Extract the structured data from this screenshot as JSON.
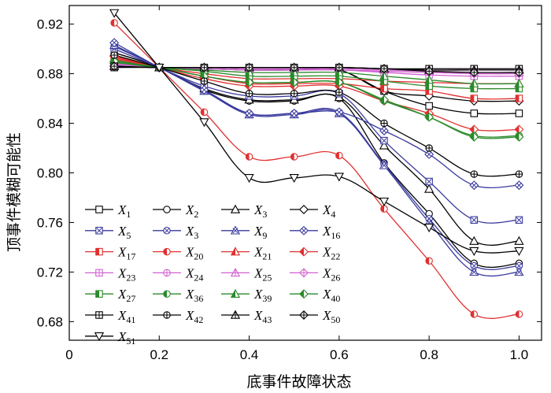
{
  "chart_data": {
    "type": "line",
    "xlabel": "底事件故障状态",
    "ylabel": "顶事件模糊可能性",
    "xlim": [
      0,
      1.05
    ],
    "ylim": [
      0.665,
      0.935
    ],
    "x_ticks": [
      "0",
      "0.2",
      "0.4",
      "0.6",
      "0.8",
      "1.0"
    ],
    "y_ticks": [
      "0.68",
      "0.72",
      "0.76",
      "0.80",
      "0.84",
      "0.88",
      "0.92"
    ],
    "grid": false,
    "legend_position": "bottom-left",
    "x": [
      0.1,
      0.2,
      0.3,
      0.4,
      0.5,
      0.6,
      0.7,
      0.8,
      0.9,
      1.0
    ],
    "series": [
      {
        "name": "X1",
        "label_main": "X",
        "label_sub": "1",
        "color": "#000000",
        "marker": "square",
        "values": [
          0.885,
          0.885,
          0.884,
          0.883,
          0.883,
          0.883,
          0.866,
          0.854,
          0.848,
          0.848
        ]
      },
      {
        "name": "X2",
        "label_main": "X",
        "label_sub": "2",
        "color": "#000000",
        "marker": "circle",
        "values": [
          0.897,
          0.885,
          0.867,
          0.858,
          0.858,
          0.86,
          0.808,
          0.767,
          0.727,
          0.727
        ]
      },
      {
        "name": "X3",
        "label_main": "X",
        "label_sub": "3",
        "color": "#000000",
        "marker": "triangle",
        "values": [
          0.897,
          0.885,
          0.868,
          0.859,
          0.859,
          0.861,
          0.822,
          0.787,
          0.745,
          0.745
        ]
      },
      {
        "name": "X4",
        "label_main": "X",
        "label_sub": "4",
        "color": "#000000",
        "marker": "diamond",
        "values": [
          0.886,
          0.885,
          0.884,
          0.883,
          0.883,
          0.883,
          0.866,
          0.862,
          0.858,
          0.858
        ]
      },
      {
        "name": "X5",
        "label_main": "X",
        "label_sub": "5",
        "color": "#3a3a9e",
        "marker": "square-x",
        "values": [
          0.9,
          0.885,
          0.87,
          0.862,
          0.862,
          0.864,
          0.826,
          0.793,
          0.762,
          0.762
        ]
      },
      {
        "name": "X3",
        "label_main": "X",
        "label_sub": "3",
        "color": "#3a3a9e",
        "marker": "circle-x",
        "values": [
          0.902,
          0.885,
          0.866,
          0.848,
          0.848,
          0.849,
          0.807,
          0.763,
          0.725,
          0.725
        ]
      },
      {
        "name": "X9",
        "label_main": "X",
        "label_sub": "9",
        "color": "#3a3a9e",
        "marker": "triangle-x",
        "values": [
          0.903,
          0.885,
          0.866,
          0.847,
          0.847,
          0.848,
          0.806,
          0.76,
          0.72,
          0.72
        ]
      },
      {
        "name": "X16",
        "label_main": "X",
        "label_sub": "16",
        "color": "#3a3a9e",
        "marker": "diamond-x",
        "values": [
          0.905,
          0.885,
          0.867,
          0.848,
          0.848,
          0.849,
          0.834,
          0.815,
          0.79,
          0.79
        ]
      },
      {
        "name": "X17",
        "label_main": "X",
        "label_sub": "17",
        "color": "#e03030",
        "marker": "square-half",
        "values": [
          0.893,
          0.885,
          0.878,
          0.872,
          0.872,
          0.872,
          0.868,
          0.866,
          0.86,
          0.86
        ]
      },
      {
        "name": "X20",
        "label_main": "X",
        "label_sub": "20",
        "color": "#e03030",
        "marker": "circle-half",
        "values": [
          0.921,
          0.885,
          0.849,
          0.813,
          0.813,
          0.814,
          0.771,
          0.729,
          0.686,
          0.686
        ]
      },
      {
        "name": "X21",
        "label_main": "X",
        "label_sub": "21",
        "color": "#e03030",
        "marker": "triangle-half",
        "values": [
          0.892,
          0.885,
          0.88,
          0.876,
          0.876,
          0.876,
          0.874,
          0.873,
          0.872,
          0.872
        ]
      },
      {
        "name": "X22",
        "label_main": "X",
        "label_sub": "22",
        "color": "#e03030",
        "marker": "diamond-half",
        "values": [
          0.894,
          0.885,
          0.876,
          0.87,
          0.87,
          0.87,
          0.858,
          0.848,
          0.835,
          0.835
        ]
      },
      {
        "name": "X23",
        "label_main": "X",
        "label_sub": "23",
        "color": "#d060d0",
        "marker": "square-plus",
        "values": [
          0.888,
          0.885,
          0.884,
          0.883,
          0.883,
          0.883,
          0.881,
          0.879,
          0.878,
          0.878
        ]
      },
      {
        "name": "X24",
        "label_main": "X",
        "label_sub": "24",
        "color": "#d060d0",
        "marker": "circle-plus",
        "values": [
          0.888,
          0.885,
          0.884,
          0.883,
          0.883,
          0.883,
          0.882,
          0.881,
          0.88,
          0.88
        ]
      },
      {
        "name": "X25",
        "label_main": "X",
        "label_sub": "25",
        "color": "#d060d0",
        "marker": "triangle-plus",
        "values": [
          0.887,
          0.885,
          0.885,
          0.884,
          0.884,
          0.884,
          0.883,
          0.882,
          0.881,
          0.881
        ]
      },
      {
        "name": "X26",
        "label_main": "X",
        "label_sub": "26",
        "color": "#d060d0",
        "marker": "diamond-plus",
        "values": [
          0.887,
          0.885,
          0.885,
          0.885,
          0.885,
          0.885,
          0.884,
          0.883,
          0.883,
          0.883
        ]
      },
      {
        "name": "X27",
        "label_main": "X",
        "label_sub": "27",
        "color": "#2a8a2a",
        "marker": "square-half",
        "values": [
          0.889,
          0.885,
          0.882,
          0.878,
          0.878,
          0.878,
          0.874,
          0.87,
          0.868,
          0.868
        ]
      },
      {
        "name": "X36",
        "label_main": "X",
        "label_sub": "36",
        "color": "#2a8a2a",
        "marker": "circle-half",
        "values": [
          0.89,
          0.885,
          0.878,
          0.873,
          0.873,
          0.873,
          0.858,
          0.845,
          0.83,
          0.83
        ]
      },
      {
        "name": "X39",
        "label_main": "X",
        "label_sub": "39",
        "color": "#2a8a2a",
        "marker": "triangle-half",
        "values": [
          0.891,
          0.885,
          0.883,
          0.881,
          0.881,
          0.881,
          0.878,
          0.875,
          0.872,
          0.872
        ]
      },
      {
        "name": "X40",
        "label_main": "X",
        "label_sub": "40",
        "color": "#2a8a2a",
        "marker": "diamond-half",
        "values": [
          0.89,
          0.885,
          0.878,
          0.873,
          0.873,
          0.873,
          0.859,
          0.845,
          0.829,
          0.829
        ]
      },
      {
        "name": "X41",
        "label_main": "X",
        "label_sub": "41",
        "color": "#000000",
        "marker": "square-plus",
        "values": [
          0.886,
          0.885,
          0.885,
          0.885,
          0.885,
          0.885,
          0.884,
          0.884,
          0.884,
          0.884
        ]
      },
      {
        "name": "X42",
        "label_main": "X",
        "label_sub": "42",
        "color": "#000000",
        "marker": "circle-plus",
        "values": [
          0.895,
          0.885,
          0.874,
          0.864,
          0.864,
          0.865,
          0.84,
          0.82,
          0.799,
          0.799
        ]
      },
      {
        "name": "X43",
        "label_main": "X",
        "label_sub": "43",
        "color": "#000000",
        "marker": "triangle-plus",
        "values": [
          0.886,
          0.885,
          0.885,
          0.885,
          0.885,
          0.885,
          0.884,
          0.883,
          0.883,
          0.883
        ]
      },
      {
        "name": "X50",
        "label_main": "X",
        "label_sub": "50",
        "color": "#000000",
        "marker": "diamond-plus",
        "values": [
          0.886,
          0.885,
          0.885,
          0.885,
          0.885,
          0.885,
          0.884,
          0.882,
          0.881,
          0.881
        ]
      },
      {
        "name": "X51",
        "label_main": "X",
        "label_sub": "51",
        "color": "#000000",
        "marker": "triangle-down",
        "values": [
          0.929,
          0.885,
          0.841,
          0.796,
          0.796,
          0.797,
          0.777,
          0.756,
          0.737,
          0.737
        ]
      }
    ]
  }
}
